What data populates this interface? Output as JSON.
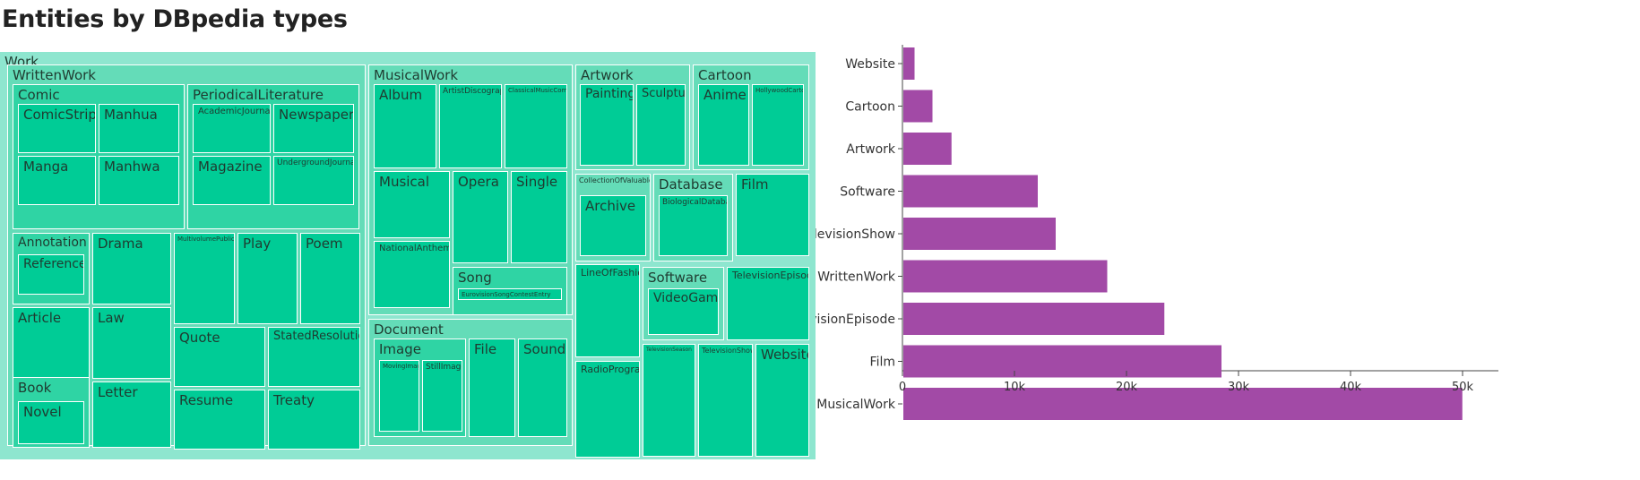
{
  "title": "Entities by DBpedia types",
  "colors": {
    "group_fill": "#8ee6cf",
    "subgroup_fill": "#2fd4a4",
    "leaf_fill": "#00cc96",
    "bar_fill": "#a24aa6",
    "label_text": "#1f3b30"
  },
  "chart_data": [
    {
      "type": "treemap",
      "root": "Work",
      "nodes": [
        {
          "name": "Work",
          "parent": ""
        },
        {
          "name": "WrittenWork",
          "parent": "Work"
        },
        {
          "name": "Comic",
          "parent": "WrittenWork"
        },
        {
          "name": "ComicStrip",
          "parent": "Comic"
        },
        {
          "name": "Manhua",
          "parent": "Comic"
        },
        {
          "name": "Manga",
          "parent": "Comic"
        },
        {
          "name": "Manhwa",
          "parent": "Comic"
        },
        {
          "name": "PeriodicalLiterature",
          "parent": "WrittenWork"
        },
        {
          "name": "AcademicJournal",
          "parent": "PeriodicalLiterature"
        },
        {
          "name": "Newspaper",
          "parent": "PeriodicalLiterature"
        },
        {
          "name": "Magazine",
          "parent": "PeriodicalLiterature"
        },
        {
          "name": "UndergroundJournal",
          "parent": "PeriodicalLiterature"
        },
        {
          "name": "Annotation",
          "parent": "WrittenWork"
        },
        {
          "name": "Reference",
          "parent": "Annotation"
        },
        {
          "name": "Drama",
          "parent": "WrittenWork"
        },
        {
          "name": "MultivolumePublication",
          "parent": "WrittenWork"
        },
        {
          "name": "Play",
          "parent": "WrittenWork"
        },
        {
          "name": "Poem",
          "parent": "WrittenWork"
        },
        {
          "name": "Article",
          "parent": "WrittenWork"
        },
        {
          "name": "Law",
          "parent": "WrittenWork"
        },
        {
          "name": "Quote",
          "parent": "WrittenWork"
        },
        {
          "name": "StatedResolution",
          "parent": "WrittenWork"
        },
        {
          "name": "Book",
          "parent": "WrittenWork"
        },
        {
          "name": "Novel",
          "parent": "Book"
        },
        {
          "name": "Letter",
          "parent": "WrittenWork"
        },
        {
          "name": "Resume",
          "parent": "WrittenWork"
        },
        {
          "name": "Treaty",
          "parent": "WrittenWork"
        },
        {
          "name": "MusicalWork",
          "parent": "Work"
        },
        {
          "name": "Album",
          "parent": "MusicalWork"
        },
        {
          "name": "ArtistDiscography",
          "parent": "MusicalWork"
        },
        {
          "name": "ClassicalMusicComposition",
          "parent": "MusicalWork"
        },
        {
          "name": "Musical",
          "parent": "MusicalWork"
        },
        {
          "name": "Opera",
          "parent": "MusicalWork"
        },
        {
          "name": "Single",
          "parent": "MusicalWork"
        },
        {
          "name": "NationalAnthem",
          "parent": "MusicalWork"
        },
        {
          "name": "Song",
          "parent": "MusicalWork"
        },
        {
          "name": "EurovisionSongContestEntry",
          "parent": "Song"
        },
        {
          "name": "Document",
          "parent": "Work"
        },
        {
          "name": "Image",
          "parent": "Document"
        },
        {
          "name": "MovingImage",
          "parent": "Image"
        },
        {
          "name": "StillImage",
          "parent": "Image"
        },
        {
          "name": "File",
          "parent": "Document"
        },
        {
          "name": "Sound",
          "parent": "Document"
        },
        {
          "name": "Artwork",
          "parent": "Work"
        },
        {
          "name": "Painting",
          "parent": "Artwork"
        },
        {
          "name": "Sculpture",
          "parent": "Artwork"
        },
        {
          "name": "Cartoon",
          "parent": "Work"
        },
        {
          "name": "Anime",
          "parent": "Cartoon"
        },
        {
          "name": "HollywoodCartoon",
          "parent": "Cartoon"
        },
        {
          "name": "CollectionOfValuables",
          "parent": "Work"
        },
        {
          "name": "Archive",
          "parent": "CollectionOfValuables"
        },
        {
          "name": "Database",
          "parent": "Work"
        },
        {
          "name": "BiologicalDatabase",
          "parent": "Database"
        },
        {
          "name": "Film",
          "parent": "Work"
        },
        {
          "name": "LineOfFashion",
          "parent": "Work"
        },
        {
          "name": "Software",
          "parent": "Work"
        },
        {
          "name": "VideoGame",
          "parent": "Software"
        },
        {
          "name": "TelevisionEpisode",
          "parent": "Work"
        },
        {
          "name": "RadioProgram",
          "parent": "Work"
        },
        {
          "name": "TelevisionSeason",
          "parent": "Work"
        },
        {
          "name": "TelevisionShow",
          "parent": "Work"
        },
        {
          "name": "Website",
          "parent": "Work"
        }
      ]
    },
    {
      "type": "bar",
      "orientation": "horizontal",
      "categories": [
        "Website",
        "Cartoon",
        "Artwork",
        "Software",
        "TelevisionShow",
        "WrittenWork",
        "TelevisionEpisode",
        "Film",
        "MusicalWork"
      ],
      "values": [
        1000,
        2600,
        4300,
        12000,
        13600,
        18200,
        23300,
        28400,
        49900
      ],
      "xlim": [
        0,
        52000
      ],
      "xticks": [
        0,
        10000,
        20000,
        30000,
        40000,
        50000
      ],
      "xtick_labels": [
        "0",
        "10k",
        "20k",
        "30k",
        "40k",
        "50k"
      ],
      "xlabel": "",
      "ylabel": ""
    }
  ]
}
